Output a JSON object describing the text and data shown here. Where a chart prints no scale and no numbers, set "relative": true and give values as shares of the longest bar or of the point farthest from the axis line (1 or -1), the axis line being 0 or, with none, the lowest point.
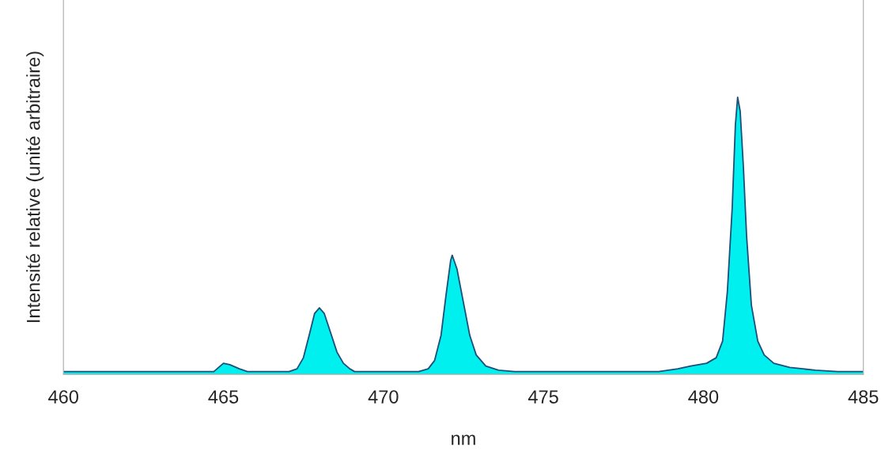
{
  "chart_data": {
    "type": "area",
    "xlabel": "nm",
    "ylabel": "Intensité relative (unité arbitraire)",
    "relative": true,
    "xlim": [
      460,
      485
    ],
    "xticks": [
      460,
      465,
      470,
      475,
      480,
      485
    ],
    "grid": false,
    "legend": false,
    "series": [
      {
        "color": "#00f0f0",
        "x": [
          460,
          464.7,
          464.8,
          465.0,
          465.2,
          465.5,
          465.75,
          467.05,
          467.3,
          467.5,
          467.7,
          467.85,
          468.0,
          468.15,
          468.35,
          468.55,
          468.75,
          468.95,
          469.1,
          471.1,
          471.4,
          471.6,
          471.8,
          471.95,
          472.1,
          472.15,
          472.3,
          472.5,
          472.7,
          472.9,
          473.2,
          473.6,
          474.1,
          478,
          478.6,
          479.2,
          479.6,
          480.1,
          480.4,
          480.6,
          480.75,
          480.9,
          481.0,
          481.07,
          481.15,
          481.25,
          481.35,
          481.5,
          481.7,
          481.9,
          482.2,
          482.7,
          483.5,
          484.2,
          485
        ],
        "values": [
          0.01,
          0.01,
          0.02,
          0.04,
          0.035,
          0.02,
          0.01,
          0.01,
          0.02,
          0.06,
          0.15,
          0.22,
          0.24,
          0.22,
          0.15,
          0.08,
          0.04,
          0.02,
          0.01,
          0.01,
          0.02,
          0.05,
          0.14,
          0.28,
          0.41,
          0.43,
          0.38,
          0.26,
          0.14,
          0.07,
          0.03,
          0.015,
          0.01,
          0.01,
          0.01,
          0.02,
          0.03,
          0.04,
          0.06,
          0.12,
          0.3,
          0.6,
          0.9,
          1,
          0.95,
          0.75,
          0.5,
          0.25,
          0.12,
          0.07,
          0.04,
          0.025,
          0.015,
          0.01,
          0.01
        ]
      }
    ]
  }
}
